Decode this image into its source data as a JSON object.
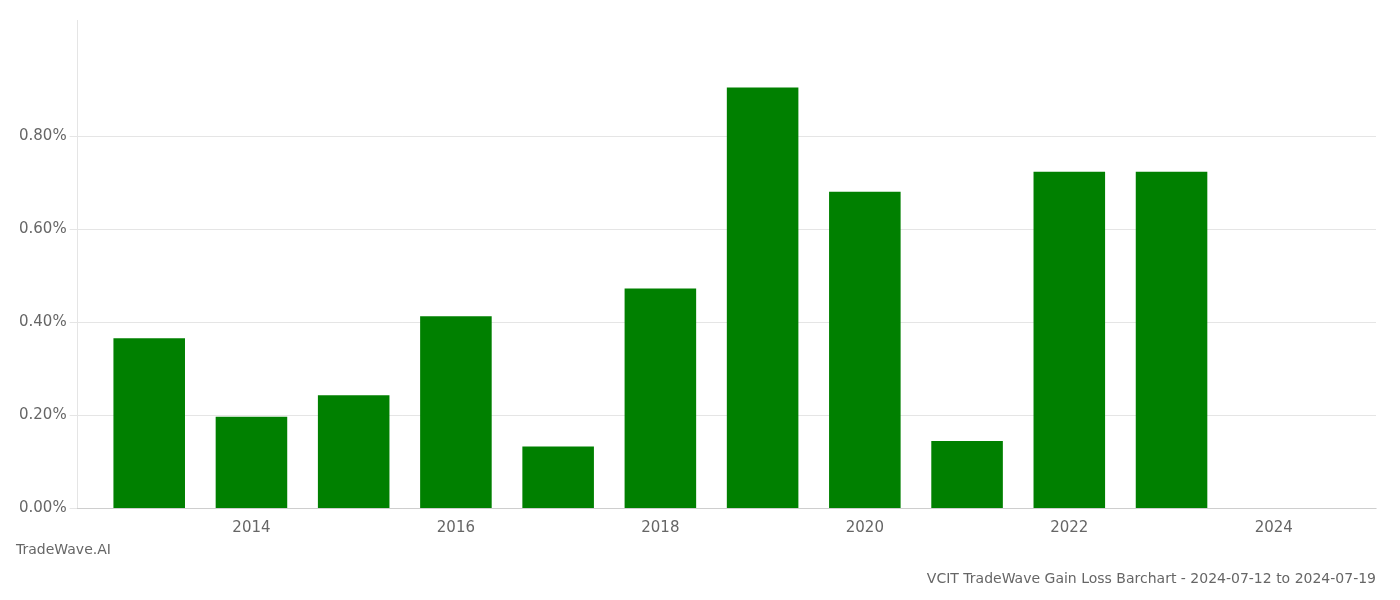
{
  "chart_data": {
    "type": "bar",
    "title": "VCIT TradeWave Gain Loss Barchart - 2024-07-12 to 2024-07-19",
    "annotations": [
      "TradeWave.AI"
    ],
    "x": [
      2013,
      2014,
      2015,
      2016,
      2017,
      2018,
      2019,
      2020,
      2021,
      2022,
      2023
    ],
    "values": [
      0.00366,
      0.00197,
      0.00243,
      0.00413,
      0.00133,
      0.00473,
      0.00905,
      0.00681,
      0.00145,
      0.00724,
      0.00724
    ],
    "color": "#008000",
    "xlim": [
      2012.3,
      2025.0
    ],
    "xticks": [
      2014,
      2016,
      2018,
      2020,
      2022,
      2024
    ],
    "ylim": [
      0,
      0.0105
    ],
    "yticks": [
      {
        "value": 0.0,
        "label": "0.00%"
      },
      {
        "value": 0.002,
        "label": "0.20%"
      },
      {
        "value": 0.004,
        "label": "0.40%"
      },
      {
        "value": 0.006,
        "label": "0.60%"
      },
      {
        "value": 0.008,
        "label": "0.80%"
      }
    ],
    "grid": true
  }
}
